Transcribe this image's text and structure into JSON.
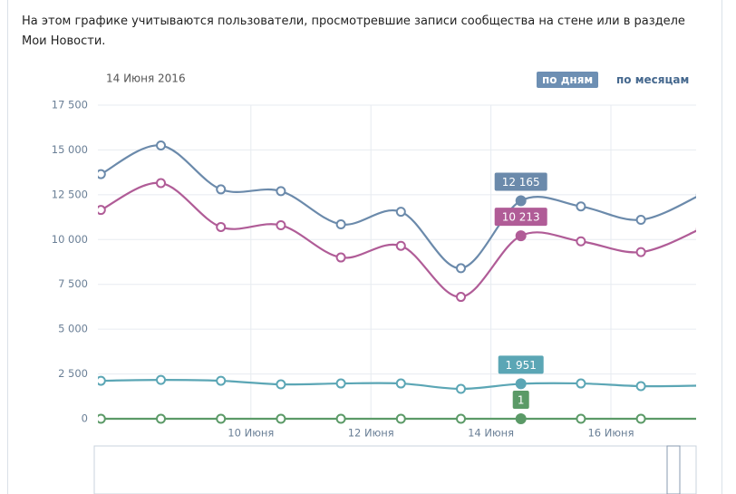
{
  "description": "На этом графике учитываются пользователи, просмотревшие записи сообщества на стене или в разделе Мои Новости.",
  "buttons": [
    "по дням",
    "по месяцам"
  ],
  "chart_data": {
    "type": "line",
    "date": "14 Июня 2016",
    "x": [
      7.5,
      8.5,
      9.5,
      10.5,
      11.5,
      12.5,
      13.5,
      14.5,
      15.5,
      16.5,
      17.5
    ],
    "xlim": [
      7.45,
      17.42
    ],
    "xticks": [
      {
        "value": 10,
        "label": "10 Июня"
      },
      {
        "value": 12,
        "label": "12 Июня"
      },
      {
        "value": 14,
        "label": "14 Июня"
      },
      {
        "value": 16,
        "label": "16 Июня"
      }
    ],
    "ylim": [
      0,
      17500
    ],
    "yticks": [
      0,
      {
        "value": 2500,
        "label": "2 500"
      },
      {
        "value": 5000,
        "label": "5 000"
      },
      {
        "value": 7500,
        "label": "7 500"
      },
      {
        "value": 10000,
        "label": "10 000"
      },
      {
        "value": 12500,
        "label": "12 500"
      },
      {
        "value": 15000,
        "label": "15 000"
      },
      {
        "value": 17500,
        "label": "17 500"
      }
    ],
    "grid": true,
    "series": [
      {
        "color": "#6b8aab",
        "values": [
          13650,
          15250,
          12800,
          12700,
          10850,
          11550,
          8400,
          12165,
          11850,
          11100,
          12500
        ],
        "value_labels": [
          null,
          null,
          null,
          null,
          null,
          null,
          null,
          "12 165",
          null,
          null,
          null
        ]
      },
      {
        "color": "#b05c97",
        "values": [
          11650,
          13150,
          10700,
          10800,
          9000,
          9650,
          6800,
          10213,
          9900,
          9300,
          10600
        ],
        "value_labels": [
          null,
          null,
          null,
          null,
          null,
          null,
          null,
          "10 213",
          null,
          null,
          null
        ]
      },
      {
        "color": "#5ba6b5",
        "values": [
          2120,
          2170,
          2120,
          1920,
          1970,
          1970,
          1670,
          1951,
          1970,
          1820,
          1850
        ],
        "value_labels": [
          null,
          null,
          null,
          null,
          null,
          null,
          null,
          "1 951",
          null,
          null,
          null
        ]
      },
      {
        "color": "#5b9a67",
        "values": [
          1,
          1,
          1,
          1,
          1,
          1,
          1,
          1,
          1,
          1,
          1
        ],
        "value_labels": [
          null,
          null,
          null,
          null,
          null,
          null,
          null,
          "1",
          null,
          null,
          null
        ]
      }
    ]
  }
}
